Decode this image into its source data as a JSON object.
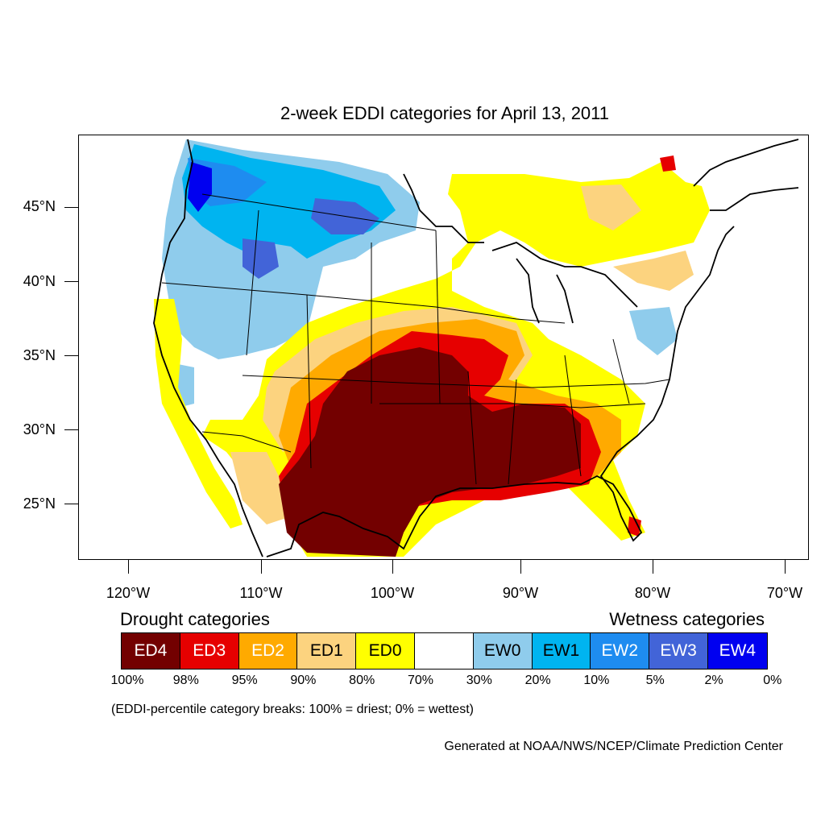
{
  "title": "2-week EDDI categories for April 13, 2011",
  "lat_labels": [
    "45°N",
    "40°N",
    "35°N",
    "30°N",
    "25°N"
  ],
  "lon_labels": [
    "120°W",
    "110°W",
    "100°W",
    "90°W",
    "80°W",
    "70°W"
  ],
  "legend": {
    "drought_heading": "Drought categories",
    "wetness_heading": "Wetness categories",
    "categories": [
      {
        "label": "ED4",
        "color": "#730000",
        "text_color": "#ffffff"
      },
      {
        "label": "ED3",
        "color": "#e60000",
        "text_color": "#ffffff"
      },
      {
        "label": "ED2",
        "color": "#ffaa00",
        "text_color": "#ffffff"
      },
      {
        "label": "ED1",
        "color": "#fcd37f",
        "text_color": "#000000"
      },
      {
        "label": "ED0",
        "color": "#ffff00",
        "text_color": "#000000"
      },
      {
        "label": "",
        "color": "#ffffff",
        "text_color": "#000000"
      },
      {
        "label": "EW0",
        "color": "#8fccec",
        "text_color": "#000000"
      },
      {
        "label": "EW1",
        "color": "#00b4f0",
        "text_color": "#000000"
      },
      {
        "label": "EW2",
        "color": "#1e8cf0",
        "text_color": "#ffffff"
      },
      {
        "label": "EW3",
        "color": "#4264d8",
        "text_color": "#ffffff"
      },
      {
        "label": "EW4",
        "color": "#0000f0",
        "text_color": "#ffffff"
      }
    ],
    "percentiles": [
      "100%",
      "98%",
      "95%",
      "90%",
      "80%",
      "70%",
      "30%",
      "20%",
      "10%",
      "5%",
      "2%",
      "0%"
    ]
  },
  "note": "(EDDI-percentile category breaks: 100% = driest; 0% = wettest)",
  "credit": "Generated at NOAA/NWS/NCEP/Climate Prediction Center"
}
